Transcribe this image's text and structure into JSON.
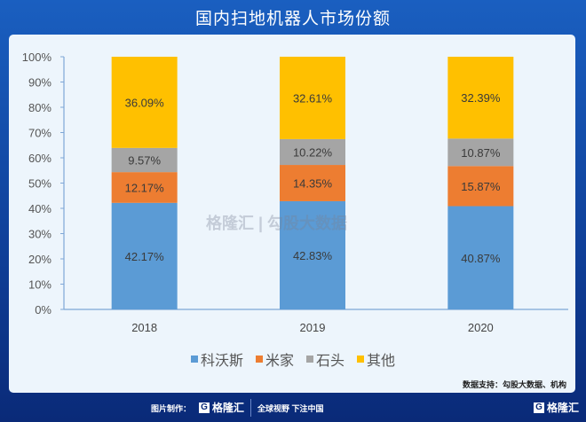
{
  "title": "国内扫地机器人市场份额",
  "chart_data": {
    "type": "bar",
    "stacked": true,
    "title": "国内扫地机器人市场份额",
    "categories": [
      "2018",
      "2019",
      "2020"
    ],
    "series": [
      {
        "name": "科沃斯",
        "color": "#5b9bd5",
        "values": [
          42.17,
          42.83,
          40.87
        ],
        "labels": [
          "42.17%",
          "42.83%",
          "40.87%"
        ]
      },
      {
        "name": "米家",
        "color": "#ed7d31",
        "values": [
          12.17,
          14.35,
          15.87
        ],
        "labels": [
          "12.17%",
          "14.35%",
          "15.87%"
        ]
      },
      {
        "name": "石头",
        "color": "#a5a5a5",
        "values": [
          9.57,
          10.22,
          10.87
        ],
        "labels": [
          "9.57%",
          "10.22%",
          "10.87%"
        ]
      },
      {
        "name": "其他",
        "color": "#ffc000",
        "values": [
          36.09,
          32.61,
          32.39
        ],
        "labels": [
          "36.09%",
          "32.61%",
          "32.39%"
        ]
      }
    ],
    "ylim": [
      0,
      100
    ],
    "yticks": [
      "0%",
      "10%",
      "20%",
      "30%",
      "40%",
      "50%",
      "60%",
      "70%",
      "80%",
      "90%",
      "100%"
    ],
    "grid": false,
    "legend": "bottom"
  },
  "watermark": "格隆汇 | 勾股大数据",
  "source": "数据支持：勾股大数据、机构",
  "footer": {
    "made_by": "图片制作：",
    "logo": "格隆汇",
    "slogan": "全球视野 下注中国",
    "corner_logo": "格隆汇"
  }
}
